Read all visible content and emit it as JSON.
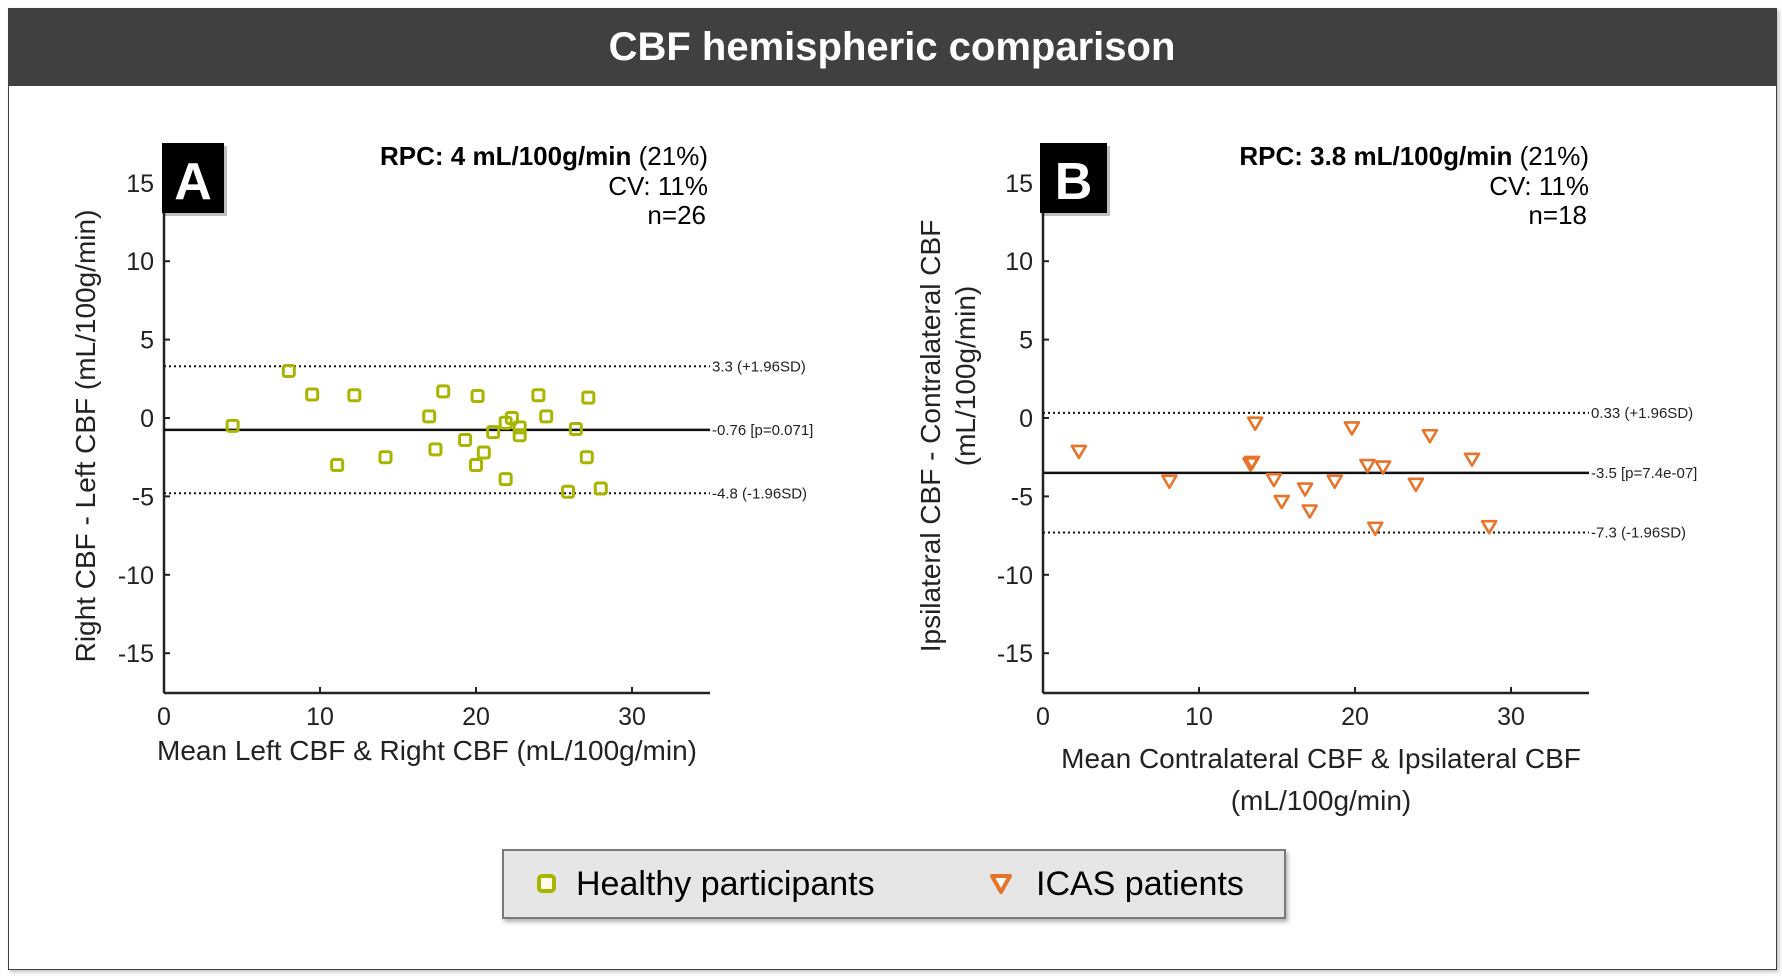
{
  "title": "CBF hemispheric comparison",
  "legend": {
    "items": [
      {
        "label": "Healthy participants",
        "marker": "square",
        "color": "#a8b400"
      },
      {
        "label": "ICAS patients",
        "marker": "triangle-down",
        "color": "#e8742a"
      }
    ]
  },
  "chart_data": [
    {
      "type": "scatter",
      "panel": "A",
      "title": "",
      "stats": {
        "rpc": "RPC: 4 mL/100g/min",
        "rpc_pct": "(21%)",
        "cv": "CV: 11%",
        "n": "n=26"
      },
      "xlabel": "Mean Left CBF & Right CBF (mL/100g/min)",
      "ylabel": "Right CBF - Left CBF (mL/100g/min)",
      "xlim": [
        0,
        35
      ],
      "ylim": [
        -17.5,
        17
      ],
      "xticks": [
        0,
        10,
        20,
        30
      ],
      "yticks": [
        15,
        10,
        5,
        0,
        -5,
        -10,
        -15
      ],
      "grid": false,
      "series": [
        {
          "name": "Healthy participants",
          "marker": "square",
          "color": "#a8b400",
          "x": [
            4.4,
            8.0,
            9.5,
            12.2,
            11.1,
            14.2,
            17.0,
            17.9,
            17.4,
            19.3,
            20.1,
            20.0,
            20.5,
            21.1,
            21.9,
            21.9,
            22.3,
            22.8,
            22.8,
            24.0,
            24.5,
            26.4,
            27.1,
            27.2,
            25.9,
            28.0
          ],
          "y": [
            -0.5,
            3.0,
            1.5,
            1.45,
            -3.0,
            -2.5,
            0.1,
            1.7,
            -2.0,
            -1.4,
            1.4,
            -3.0,
            -2.2,
            -0.9,
            -3.9,
            -0.3,
            0.0,
            -0.6,
            -1.1,
            1.45,
            0.1,
            -0.7,
            -2.5,
            1.3,
            -4.7,
            -4.5
          ]
        }
      ],
      "lines": [
        {
          "value": 3.3,
          "style": "dotted",
          "label": "3.3 (+1.96SD)"
        },
        {
          "value": -0.76,
          "style": "solid",
          "label": "-0.76 [p=0.071]"
        },
        {
          "value": -4.8,
          "style": "dotted",
          "label": "-4.8 (-1.96SD)"
        }
      ]
    },
    {
      "type": "scatter",
      "panel": "B",
      "title": "",
      "stats": {
        "rpc": "RPC: 3.8 mL/100g/min",
        "rpc_pct": "(21%)",
        "cv": "CV: 11%",
        "n": "n=18"
      },
      "xlabel": "Mean Contralateral CBF & Ipsilateral CBF",
      "xlabel2": "(mL/100g/min)",
      "ylabel": "Ipsilateral CBF - Contralateral CBF",
      "ylabel2": "(mL/100g/min)",
      "xlim": [
        0,
        35
      ],
      "ylim": [
        -17.5,
        17
      ],
      "xticks": [
        0,
        10,
        20,
        30
      ],
      "yticks": [
        15,
        10,
        5,
        0,
        -5,
        -10,
        -15
      ],
      "grid": false,
      "series": [
        {
          "name": "ICAS patients",
          "marker": "triangle-down",
          "color": "#e8742a",
          "x": [
            2.3,
            8.1,
            13.6,
            13.3,
            13.4,
            14.8,
            15.3,
            16.8,
            17.1,
            18.7,
            19.8,
            20.8,
            21.8,
            21.3,
            23.9,
            24.8,
            27.5,
            28.6
          ],
          "y": [
            -2.1,
            -4.0,
            -0.3,
            -2.9,
            -2.8,
            -3.9,
            -5.3,
            -4.5,
            -5.9,
            -4.0,
            -0.6,
            -3.0,
            -3.1,
            -7.0,
            -4.2,
            -1.1,
            -2.6,
            -6.9
          ]
        }
      ],
      "lines": [
        {
          "value": 0.33,
          "style": "dotted",
          "label": "0.33 (+1.96SD)"
        },
        {
          "value": -3.5,
          "style": "solid",
          "label": "-3.5 [p=7.4e-07]"
        },
        {
          "value": -7.3,
          "style": "dotted",
          "label": "-7.3 (-1.96SD)"
        }
      ]
    }
  ]
}
